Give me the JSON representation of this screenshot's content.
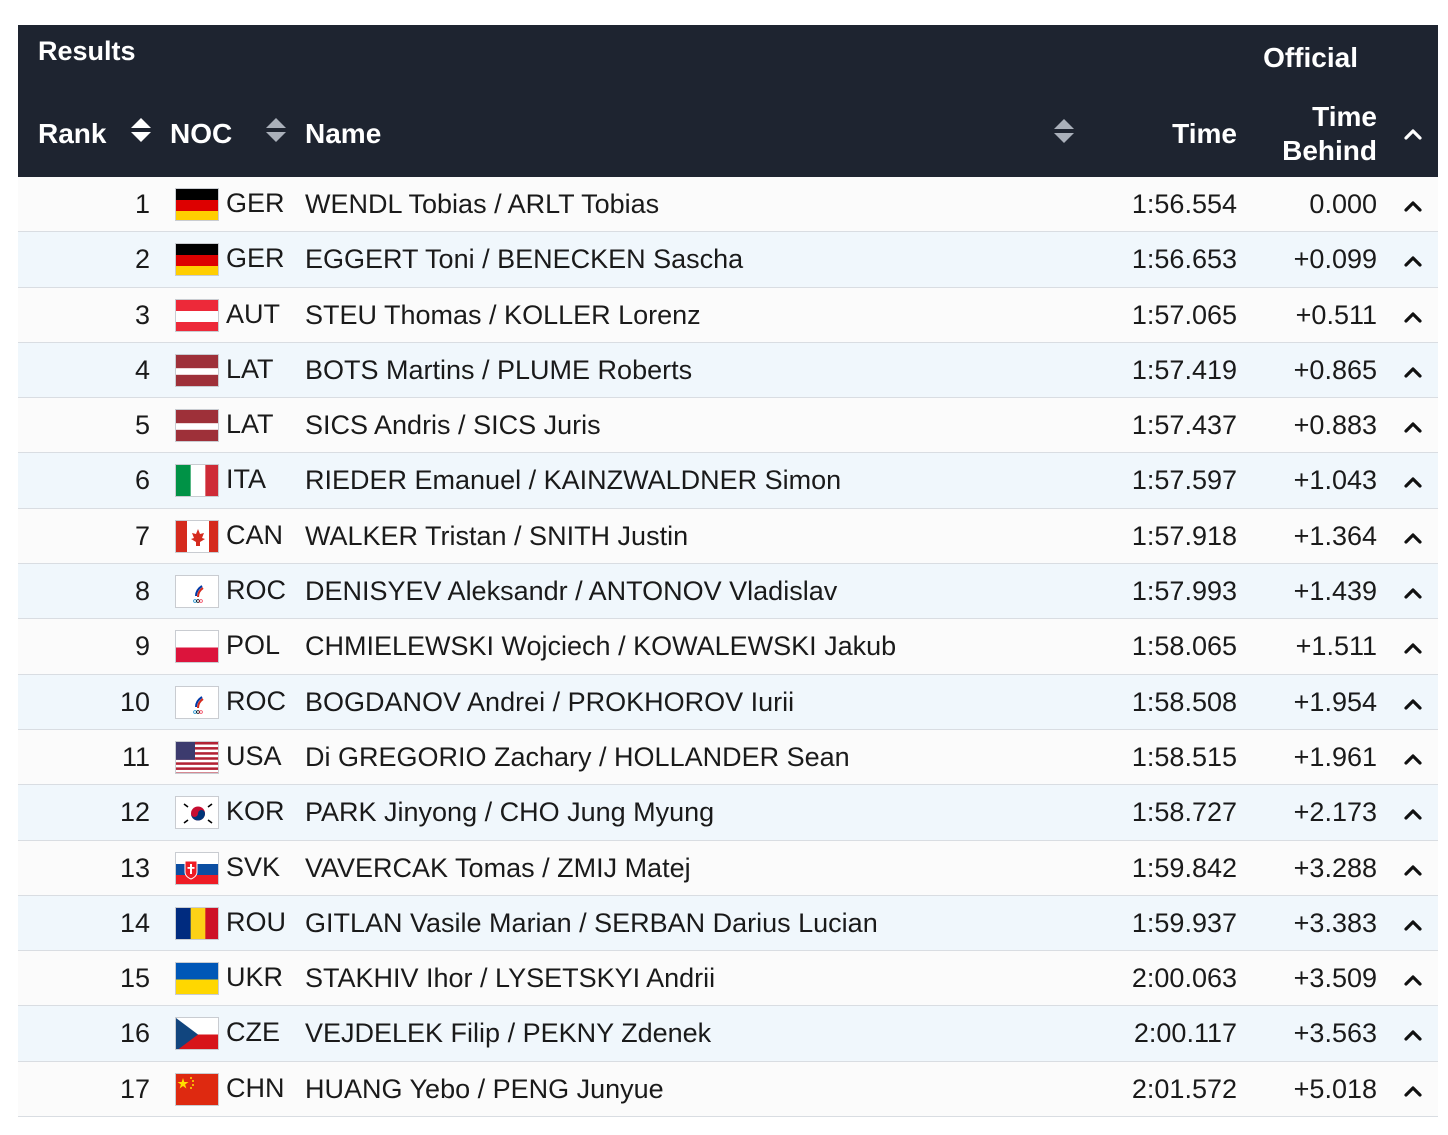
{
  "header": {
    "title": "Results",
    "status": "Official",
    "columns": {
      "rank": "Rank",
      "noc": "NOC",
      "name": "Name",
      "time": "Time",
      "time_behind_line1": "Time",
      "time_behind_line2": "Behind"
    }
  },
  "rows": [
    {
      "rank": "1",
      "noc": "GER",
      "name": "WENDL Tobias / ARLT Tobias",
      "time": "1:56.554",
      "behind": "0.000"
    },
    {
      "rank": "2",
      "noc": "GER",
      "name": "EGGERT Toni / BENECKEN Sascha",
      "time": "1:56.653",
      "behind": "+0.099"
    },
    {
      "rank": "3",
      "noc": "AUT",
      "name": "STEU Thomas / KOLLER Lorenz",
      "time": "1:57.065",
      "behind": "+0.511"
    },
    {
      "rank": "4",
      "noc": "LAT",
      "name": "BOTS Martins / PLUME Roberts",
      "time": "1:57.419",
      "behind": "+0.865"
    },
    {
      "rank": "5",
      "noc": "LAT",
      "name": "SICS Andris / SICS Juris",
      "time": "1:57.437",
      "behind": "+0.883"
    },
    {
      "rank": "6",
      "noc": "ITA",
      "name": "RIEDER Emanuel / KAINZWALDNER Simon",
      "time": "1:57.597",
      "behind": "+1.043"
    },
    {
      "rank": "7",
      "noc": "CAN",
      "name": "WALKER Tristan / SNITH Justin",
      "time": "1:57.918",
      "behind": "+1.364"
    },
    {
      "rank": "8",
      "noc": "ROC",
      "name": "DENISYEV Aleksandr / ANTONOV Vladislav",
      "time": "1:57.993",
      "behind": "+1.439"
    },
    {
      "rank": "9",
      "noc": "POL",
      "name": "CHMIELEWSKI Wojciech / KOWALEWSKI Jakub",
      "time": "1:58.065",
      "behind": "+1.511"
    },
    {
      "rank": "10",
      "noc": "ROC",
      "name": "BOGDANOV Andrei / PROKHOROV Iurii",
      "time": "1:58.508",
      "behind": "+1.954"
    },
    {
      "rank": "11",
      "noc": "USA",
      "name": "Di GREGORIO Zachary / HOLLANDER Sean",
      "time": "1:58.515",
      "behind": "+1.961"
    },
    {
      "rank": "12",
      "noc": "KOR",
      "name": "PARK Jinyong / CHO Jung Myung",
      "time": "1:58.727",
      "behind": "+2.173"
    },
    {
      "rank": "13",
      "noc": "SVK",
      "name": "VAVERCAK Tomas / ZMIJ Matej",
      "time": "1:59.842",
      "behind": "+3.288"
    },
    {
      "rank": "14",
      "noc": "ROU",
      "name": "GITLAN Vasile Marian / SERBAN Darius Lucian",
      "time": "1:59.937",
      "behind": "+3.383"
    },
    {
      "rank": "15",
      "noc": "UKR",
      "name": "STAKHIV Ihor / LYSETSKYI Andrii",
      "time": "2:00.063",
      "behind": "+3.509"
    },
    {
      "rank": "16",
      "noc": "CZE",
      "name": "VEJDELEK Filip / PEKNY Zdenek",
      "time": "2:00.117",
      "behind": "+3.563"
    },
    {
      "rank": "17",
      "noc": "CHN",
      "name": "HUANG Yebo / PENG Junyue",
      "time": "2:01.572",
      "behind": "+5.018"
    }
  ],
  "colors": {
    "header_bg": "#1e2430",
    "row_alt_bg": "#f0f7fc",
    "divider": "#d9dde2"
  }
}
